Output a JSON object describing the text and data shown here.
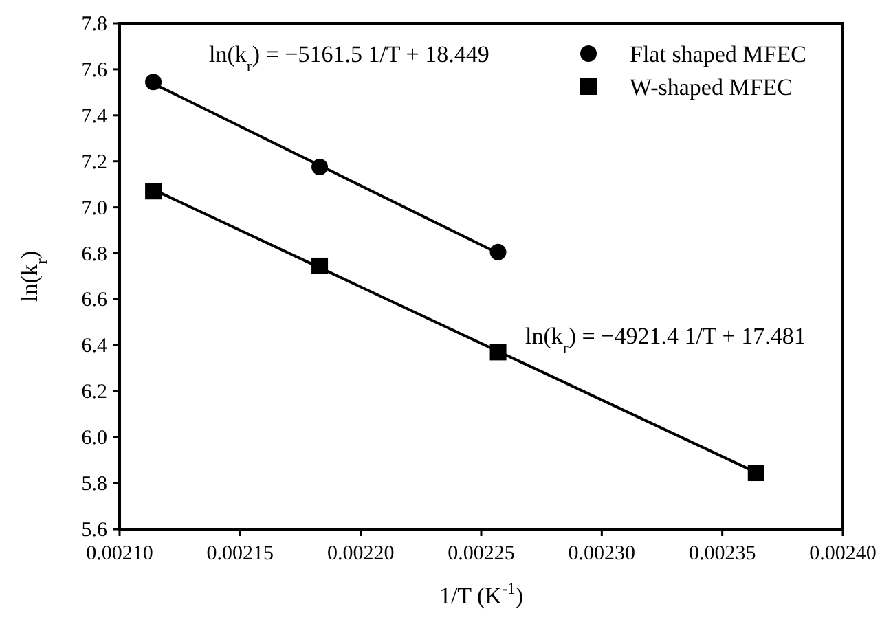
{
  "chart_data": {
    "type": "scatter",
    "xlabel": "1/T (K$^{-1}$)",
    "ylabel": "ln(k$_{r}$)",
    "xlim": [
      0.0021,
      0.0024
    ],
    "xticks": [
      {
        "value": 0.0021,
        "label": "0.00210"
      },
      {
        "value": 0.00215,
        "label": "0.00215"
      },
      {
        "value": 0.0022,
        "label": "0.00220"
      },
      {
        "value": 0.00225,
        "label": "0.00225"
      },
      {
        "value": 0.0023,
        "label": "0.00230"
      },
      {
        "value": 0.00235,
        "label": "0.00235"
      },
      {
        "value": 0.0024,
        "label": "0.00240"
      }
    ],
    "ylim": [
      5.6,
      7.8
    ],
    "yticks": [
      5.6,
      5.8,
      {
        "value": 6.0,
        "label": "6.0"
      },
      6.2,
      6.4,
      6.6,
      6.8,
      {
        "value": 7.0,
        "label": "7.0"
      },
      7.2,
      7.4,
      7.6,
      7.8
    ],
    "grid": false,
    "legend": "top right",
    "series": [
      {
        "name": "Flat shaped MFEC",
        "color": "#000000",
        "marker": "circle",
        "x": [
          0.002114,
          0.002183,
          0.002257
        ],
        "values": [
          7.545,
          7.175,
          6.805
        ]
      },
      {
        "name": "W-shaped MFEC",
        "color": "#000000",
        "marker": "square",
        "x": [
          0.002114,
          0.002183,
          0.002257,
          0.002364
        ],
        "values": [
          7.07,
          6.745,
          6.37,
          5.845
        ]
      },
      {
        "type": "line",
        "color": "#000000",
        "marker": "none",
        "x": [
          0.002114,
          0.002257
        ],
        "values": [
          7.538,
          6.8
        ]
      },
      {
        "type": "line",
        "color": "#000000",
        "marker": "none",
        "x": [
          0.002114,
          0.002364
        ],
        "values": [
          7.077,
          5.847
        ]
      }
    ],
    "annotations": [
      "ln(k$_{r}$) = −5161.5 1/T + 18.449",
      "ln(k$_{r}$) = −4921.4 1/T + 17.481"
    ]
  }
}
